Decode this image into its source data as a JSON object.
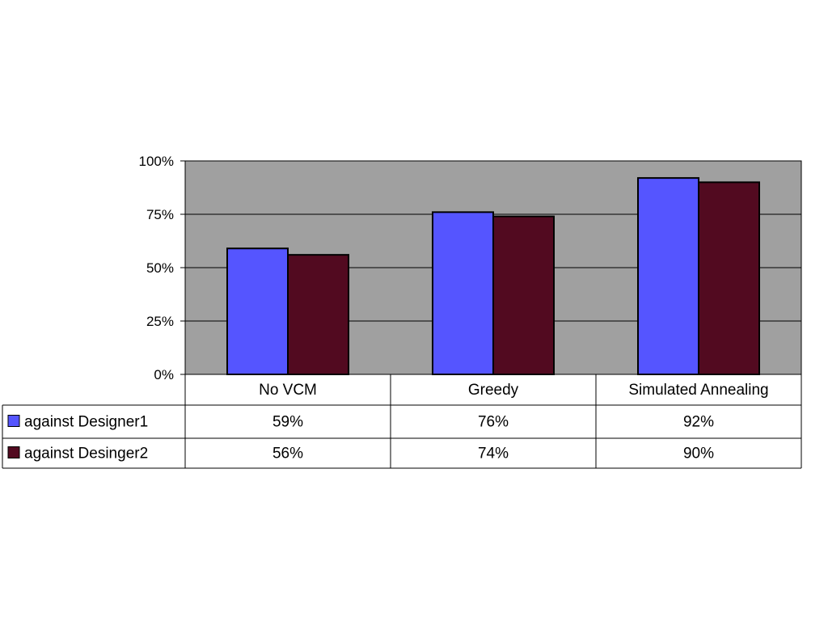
{
  "chart_data": {
    "type": "bar",
    "title": "",
    "xlabel": "",
    "ylabel": "",
    "categories": [
      "No VCM",
      "Greedy",
      "Simulated Annealing"
    ],
    "series": [
      {
        "name": "against Designer1",
        "values": [
          59,
          76,
          92
        ],
        "labels": [
          "59%",
          "76%",
          "92%"
        ],
        "color": "#5555ff"
      },
      {
        "name": "against Desinger2",
        "values": [
          56,
          74,
          90
        ],
        "labels": [
          "56%",
          "74%",
          "90%"
        ],
        "color": "#520a20"
      }
    ],
    "ylim": [
      0,
      100
    ],
    "yticks": [
      0,
      25,
      50,
      75,
      100
    ],
    "ytick_labels": [
      "0%",
      "25%",
      "50%",
      "75%",
      "100%"
    ],
    "grid": true,
    "plot_background": "#a0a0a0",
    "legend": "data-table-below"
  }
}
